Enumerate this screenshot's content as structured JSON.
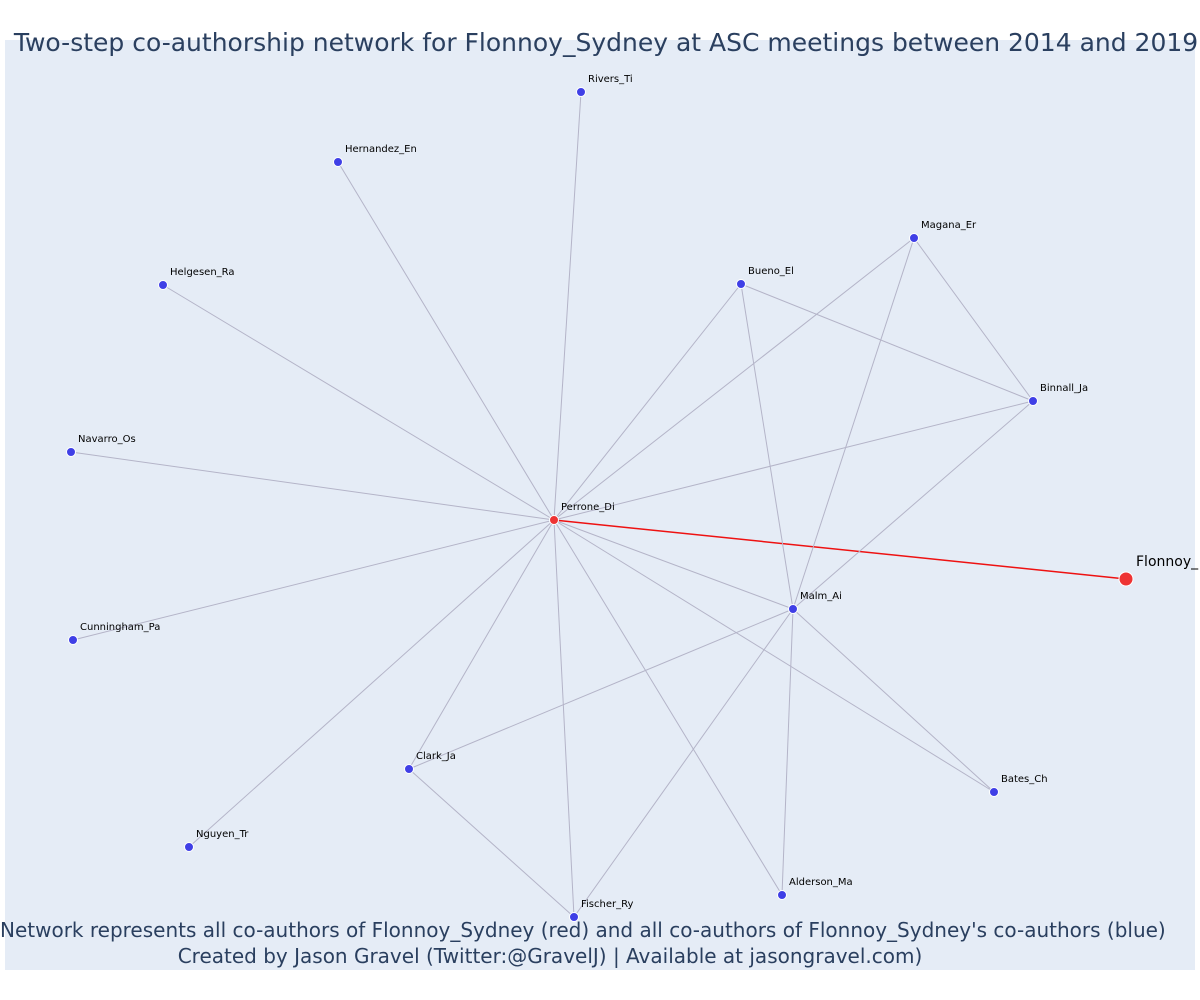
{
  "title": "Two-step co-authorship network for Flonnoy_Sydney at ASC meetings between 2014 and 2019",
  "caption": {
    "line1": "Network represents all co-authors of Flonnoy_Sydney (red) and all co-authors of Flonnoy_Sydney's co-authors (blue)",
    "line2": "Created by Jason Gravel (Twitter:@GravelJ) | Available at jasongravel.com)"
  },
  "colors": {
    "plot_background": "#e5ecf6",
    "edge": "#b4b4c8",
    "focal_edge": "#ee1111",
    "coauthor_node": "#3f3fe6",
    "focal_node": "#ee3333"
  },
  "nodes": [
    {
      "id": "Flonnoy_Sydney",
      "label": "Flonnoy_",
      "group": "focal"
    },
    {
      "id": "Perrone_Di",
      "label": "Perrone_Di",
      "group": "direct"
    },
    {
      "id": "Rivers_Ti",
      "label": "Rivers_Ti",
      "group": "second"
    },
    {
      "id": "Hernandez_En",
      "label": "Hernandez_En",
      "group": "second"
    },
    {
      "id": "Magana_Er",
      "label": "Magana_Er",
      "group": "second"
    },
    {
      "id": "Bueno_El",
      "label": "Bueno_El",
      "group": "second"
    },
    {
      "id": "Helgesen_Ra",
      "label": "Helgesen_Ra",
      "group": "second"
    },
    {
      "id": "Binnall_Ja",
      "label": "Binnall_Ja",
      "group": "second"
    },
    {
      "id": "Navarro_Os",
      "label": "Navarro_Os",
      "group": "second"
    },
    {
      "id": "Malm_Ai",
      "label": "Malm_Ai",
      "group": "second"
    },
    {
      "id": "Cunningham_Pa",
      "label": "Cunningham_Pa",
      "group": "second"
    },
    {
      "id": "Clark_Ja",
      "label": "Clark_Ja",
      "group": "second"
    },
    {
      "id": "Bates_Ch",
      "label": "Bates_Ch",
      "group": "second"
    },
    {
      "id": "Nguyen_Tr",
      "label": "Nguyen_Tr",
      "group": "second"
    },
    {
      "id": "Alderson_Ma",
      "label": "Alderson_Ma",
      "group": "second"
    },
    {
      "id": "Fischer_Ry",
      "label": "Fischer_Ry",
      "group": "second"
    }
  ],
  "edges": [
    [
      "Flonnoy_Sydney",
      "Perrone_Di"
    ],
    [
      "Perrone_Di",
      "Rivers_Ti"
    ],
    [
      "Perrone_Di",
      "Hernandez_En"
    ],
    [
      "Perrone_Di",
      "Helgesen_Ra"
    ],
    [
      "Perrone_Di",
      "Navarro_Os"
    ],
    [
      "Perrone_Di",
      "Cunningham_Pa"
    ],
    [
      "Perrone_Di",
      "Nguyen_Tr"
    ],
    [
      "Perrone_Di",
      "Clark_Ja"
    ],
    [
      "Perrone_Di",
      "Fischer_Ry"
    ],
    [
      "Perrone_Di",
      "Alderson_Ma"
    ],
    [
      "Perrone_Di",
      "Bates_Ch"
    ],
    [
      "Perrone_Di",
      "Malm_Ai"
    ],
    [
      "Perrone_Di",
      "Binnall_Ja"
    ],
    [
      "Perrone_Di",
      "Magana_Er"
    ],
    [
      "Perrone_Di",
      "Bueno_El"
    ],
    [
      "Bueno_El",
      "Binnall_Ja"
    ],
    [
      "Bueno_El",
      "Malm_Ai"
    ],
    [
      "Magana_Er",
      "Binnall_Ja"
    ],
    [
      "Magana_Er",
      "Malm_Ai"
    ],
    [
      "Binnall_Ja",
      "Malm_Ai"
    ],
    [
      "Malm_Ai",
      "Clark_Ja"
    ],
    [
      "Malm_Ai",
      "Fischer_Ry"
    ],
    [
      "Malm_Ai",
      "Alderson_Ma"
    ],
    [
      "Malm_Ai",
      "Bates_Ch"
    ],
    [
      "Clark_Ja",
      "Fischer_Ry"
    ]
  ]
}
